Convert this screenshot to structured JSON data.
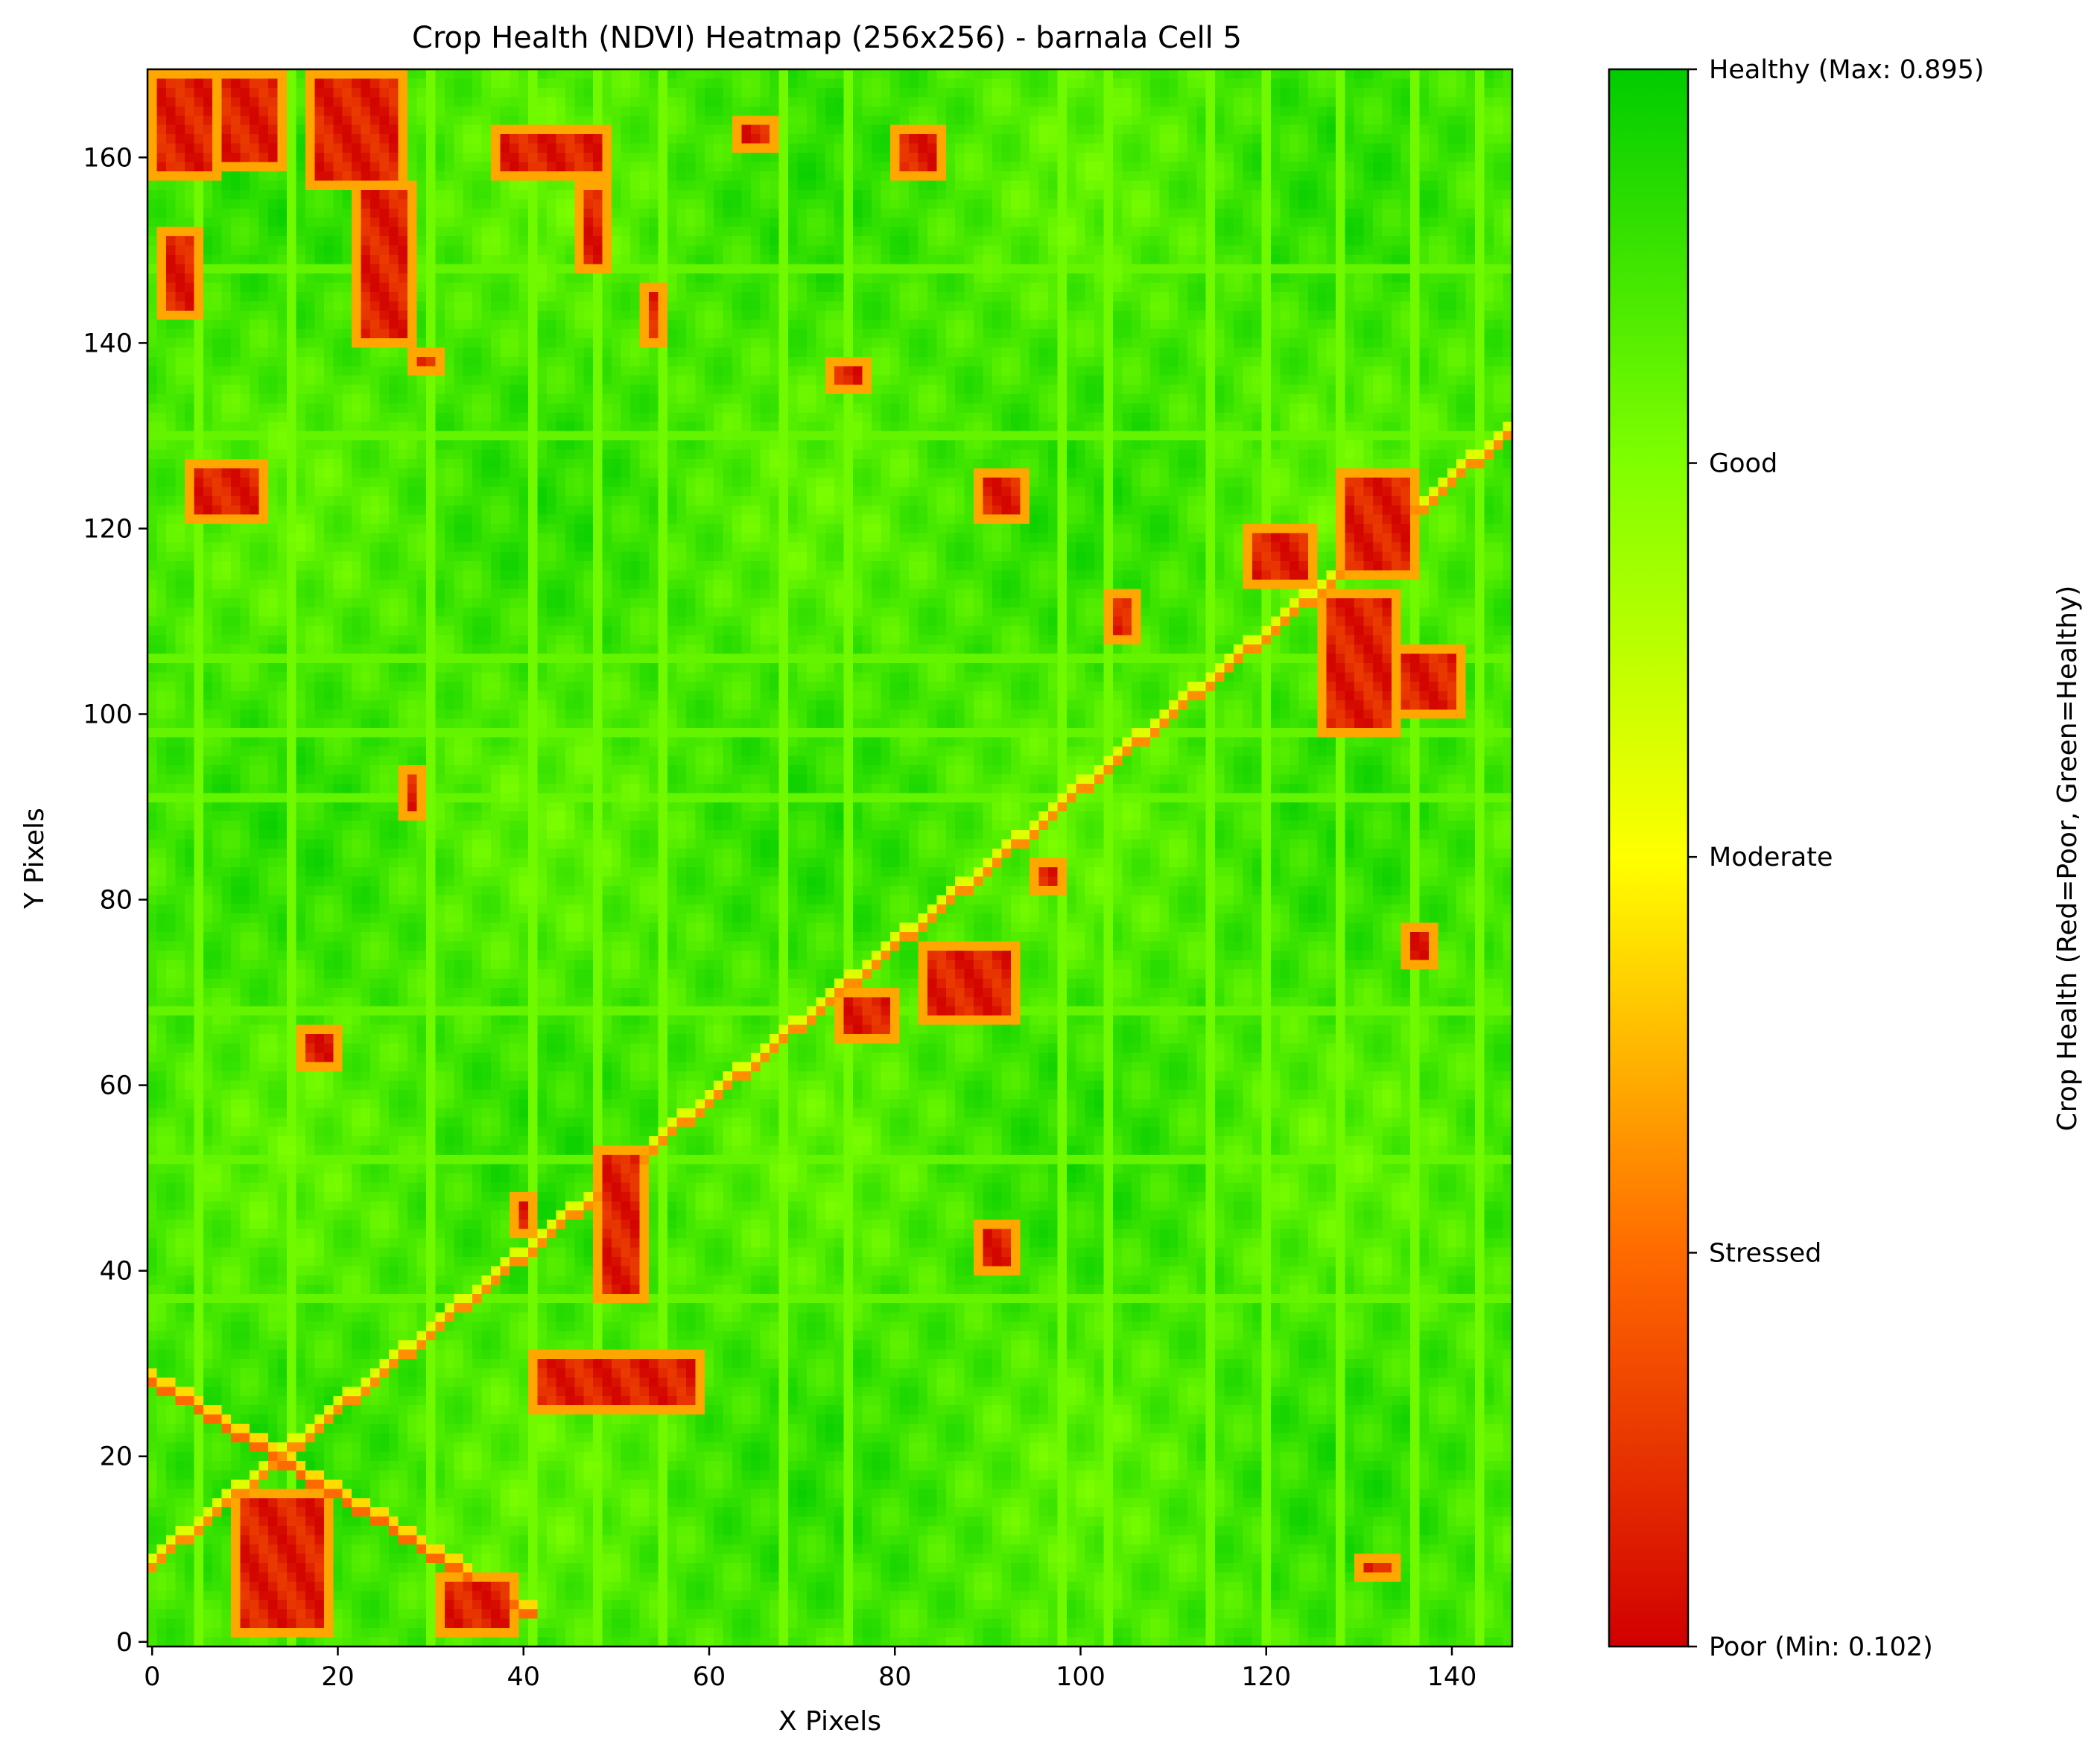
{
  "chart_data": {
    "type": "heatmap",
    "title": "Crop Health (NDVI) Heatmap (256x256) - barnala Cell 5",
    "xlabel": "X Pixels",
    "ylabel": "Y Pixels",
    "xlim": [
      -0.5,
      146.5
    ],
    "ylim": [
      -0.5,
      169.5
    ],
    "x_ticks": [
      0,
      20,
      40,
      60,
      80,
      100,
      120,
      140
    ],
    "y_ticks": [
      0,
      20,
      40,
      60,
      80,
      100,
      120,
      140,
      160
    ],
    "grid": false,
    "colormap": [
      "#d10000",
      "#ff6a00",
      "#ffff00",
      "#80ff00",
      "#00cc00"
    ],
    "colorbar": {
      "label": "Crop Health (Red=Poor, Green=Healthy)",
      "min": 0.102,
      "max": 0.895,
      "ticks": [
        {
          "value": 0.102,
          "label": "Poor (Min: 0.102)"
        },
        {
          "value": 0.3,
          "label": "Stressed"
        },
        {
          "value": 0.499,
          "label": "Moderate"
        },
        {
          "value": 0.697,
          "label": "Good"
        },
        {
          "value": 0.895,
          "label": "Healthy (Max: 0.895)"
        }
      ]
    },
    "base_value": 0.82,
    "poor_patches": [
      {
        "x": [
          0,
          8
        ],
        "y": [
          158,
          170
        ]
      },
      {
        "x": [
          7,
          15
        ],
        "y": [
          159,
          170
        ]
      },
      {
        "x": [
          17,
          28
        ],
        "y": [
          157,
          170
        ]
      },
      {
        "x": [
          22,
          29
        ],
        "y": [
          140,
          158
        ]
      },
      {
        "x": [
          28,
          32
        ],
        "y": [
          137,
          140
        ]
      },
      {
        "x": [
          1,
          6
        ],
        "y": [
          143,
          153
        ]
      },
      {
        "x": [
          37,
          50
        ],
        "y": [
          158,
          164
        ]
      },
      {
        "x": [
          46,
          50
        ],
        "y": [
          148,
          158
        ]
      },
      {
        "x": [
          53,
          56
        ],
        "y": [
          140,
          147
        ]
      },
      {
        "x": [
          63,
          68
        ],
        "y": [
          161,
          165
        ]
      },
      {
        "x": [
          80,
          86
        ],
        "y": [
          158,
          164
        ]
      },
      {
        "x": [
          73,
          78
        ],
        "y": [
          135,
          139
        ]
      },
      {
        "x": [
          4,
          13
        ],
        "y": [
          121,
          128
        ]
      },
      {
        "x": [
          89,
          95
        ],
        "y": [
          121,
          127
        ]
      },
      {
        "x": [
          103,
          107
        ],
        "y": [
          108,
          114
        ]
      },
      {
        "x": [
          118,
          126
        ],
        "y": [
          114,
          121
        ]
      },
      {
        "x": [
          128,
          137
        ],
        "y": [
          115,
          127
        ]
      },
      {
        "x": [
          126,
          135
        ],
        "y": [
          98,
          114
        ]
      },
      {
        "x": [
          134,
          142
        ],
        "y": [
          100,
          108
        ]
      },
      {
        "x": [
          27,
          30
        ],
        "y": [
          89,
          95
        ]
      },
      {
        "x": [
          135,
          139
        ],
        "y": [
          73,
          78
        ]
      },
      {
        "x": [
          95,
          99
        ],
        "y": [
          81,
          85
        ]
      },
      {
        "x": [
          83,
          94
        ],
        "y": [
          67,
          76
        ]
      },
      {
        "x": [
          74,
          81
        ],
        "y": [
          65,
          71
        ]
      },
      {
        "x": [
          16,
          21
        ],
        "y": [
          62,
          67
        ]
      },
      {
        "x": [
          48,
          54
        ],
        "y": [
          37,
          54
        ]
      },
      {
        "x": [
          39,
          42
        ],
        "y": [
          44,
          49
        ]
      },
      {
        "x": [
          89,
          94
        ],
        "y": [
          40,
          46
        ]
      },
      {
        "x": [
          41,
          60
        ],
        "y": [
          25,
          32
        ]
      },
      {
        "x": [
          9,
          20
        ],
        "y": [
          1,
          17
        ]
      },
      {
        "x": [
          31,
          40
        ],
        "y": [
          1,
          8
        ]
      },
      {
        "x": [
          130,
          135
        ],
        "y": [
          7,
          10
        ]
      }
    ]
  }
}
